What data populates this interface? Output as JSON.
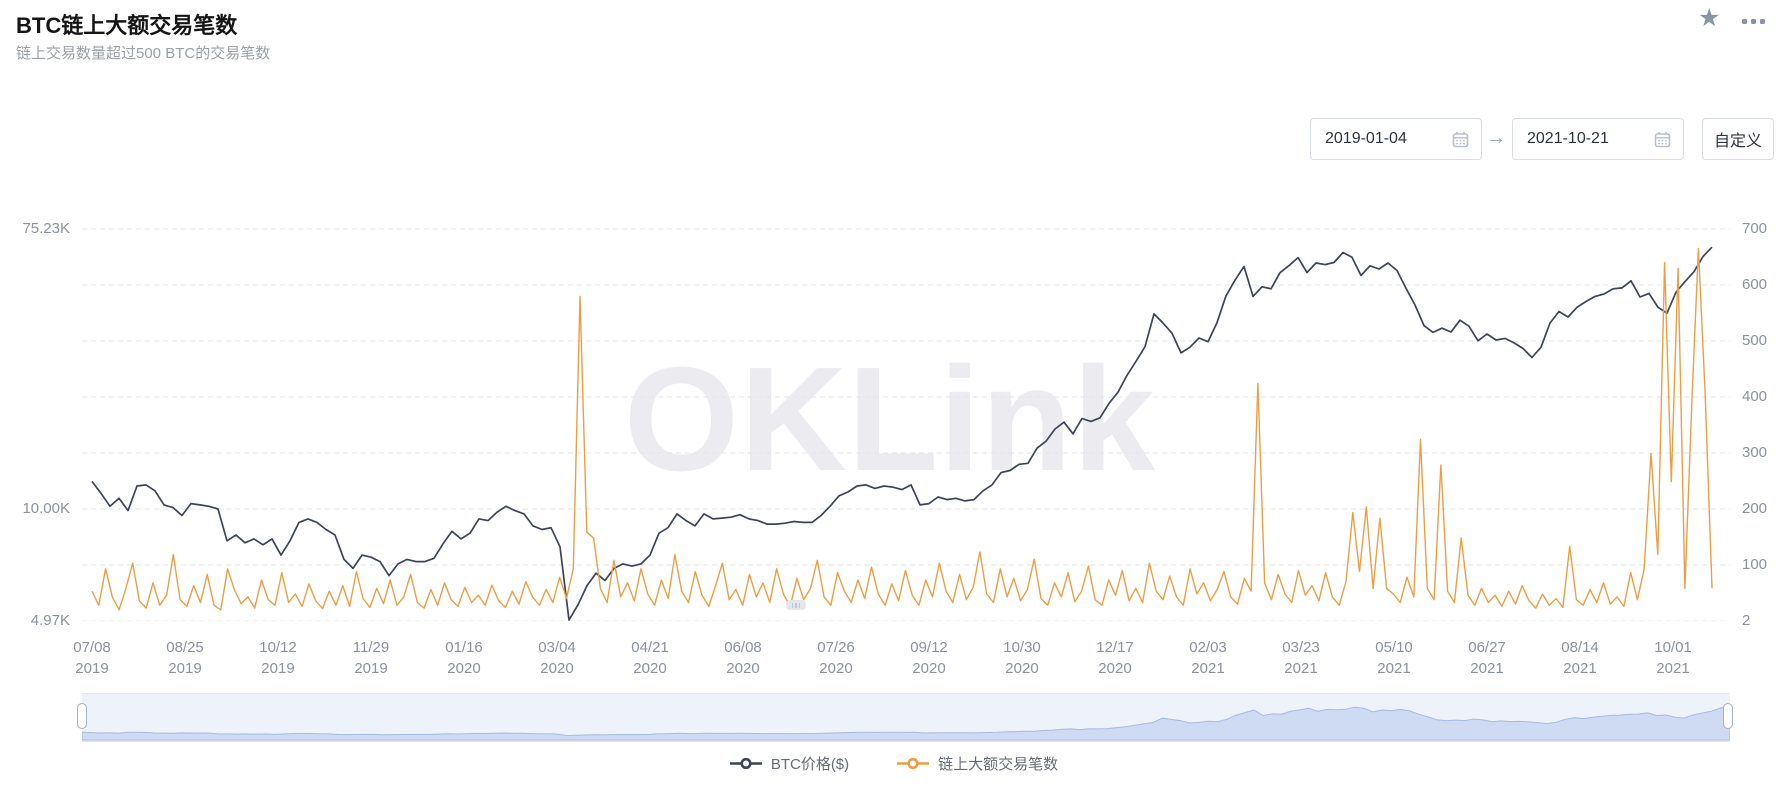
{
  "header": {
    "title": "BTC链上大额交易笔数",
    "subtitle": "链上交易数量超过500 BTC的交易笔数"
  },
  "controls": {
    "start_date": "2019-01-04",
    "end_date": "2021-10-21",
    "arrow": "→",
    "custom_label": "自定义"
  },
  "icons": {
    "star": "★",
    "calendar": "calendar-icon",
    "more": "more-dots-icon"
  },
  "chart_data": {
    "type": "line",
    "title": "BTC链上大额交易笔数",
    "watermark": "OKLink",
    "grid_color": "#e3e5ea",
    "legend_position": "bottom-center",
    "x_axis": {
      "ticks": [
        {
          "date": "07/08",
          "year": "2019"
        },
        {
          "date": "08/25",
          "year": "2019"
        },
        {
          "date": "10/12",
          "year": "2019"
        },
        {
          "date": "11/29",
          "year": "2019"
        },
        {
          "date": "01/16",
          "year": "2020"
        },
        {
          "date": "03/04",
          "year": "2020"
        },
        {
          "date": "04/21",
          "year": "2020"
        },
        {
          "date": "06/08",
          "year": "2020"
        },
        {
          "date": "07/26",
          "year": "2020"
        },
        {
          "date": "09/12",
          "year": "2020"
        },
        {
          "date": "10/30",
          "year": "2020"
        },
        {
          "date": "12/17",
          "year": "2020"
        },
        {
          "date": "02/03",
          "year": "2021"
        },
        {
          "date": "03/23",
          "year": "2021"
        },
        {
          "date": "05/10",
          "year": "2021"
        },
        {
          "date": "06/27",
          "year": "2021"
        },
        {
          "date": "08/14",
          "year": "2021"
        },
        {
          "date": "10/01",
          "year": "2021"
        }
      ]
    },
    "y_axis_left": {
      "scale": "log",
      "unit": "K",
      "labels": [
        {
          "text": "75.23K",
          "line": 0
        },
        {
          "text": "10.00K",
          "line": 5
        },
        {
          "text": "4.97K",
          "line": 7
        }
      ],
      "min": 4970,
      "max": 75230
    },
    "y_axis_right": {
      "scale": "linear",
      "labels": [
        "700",
        "600",
        "500",
        "400",
        "300",
        "200",
        "100",
        "2"
      ],
      "min": 2,
      "max": 700
    },
    "series": [
      {
        "name": "BTC价格($)",
        "color": "#3d4459",
        "axis": "left",
        "unit_scale": 1000,
        "values": [
          12.2,
          11.2,
          10.2,
          10.8,
          9.9,
          11.8,
          11.9,
          11.4,
          10.3,
          10.1,
          9.6,
          10.4,
          10.3,
          10.2,
          10.0,
          8.2,
          8.5,
          8.1,
          8.3,
          8.0,
          8.3,
          7.5,
          8.2,
          9.2,
          9.4,
          9.2,
          8.8,
          8.5,
          7.3,
          6.9,
          7.5,
          7.4,
          7.2,
          6.6,
          7.1,
          7.3,
          7.2,
          7.2,
          7.35,
          8.05,
          8.7,
          8.3,
          8.6,
          9.4,
          9.3,
          9.8,
          10.2,
          9.9,
          9.7,
          9.0,
          8.8,
          8.9,
          7.9,
          5.0,
          5.5,
          6.2,
          6.7,
          6.4,
          6.9,
          7.1,
          7.0,
          7.1,
          7.5,
          8.6,
          8.9,
          9.7,
          9.3,
          9.0,
          9.7,
          9.4,
          9.45,
          9.5,
          9.65,
          9.4,
          9.3,
          9.1,
          9.1,
          9.15,
          9.25,
          9.2,
          9.2,
          9.6,
          10.2,
          11.0,
          11.3,
          11.8,
          11.9,
          11.6,
          11.8,
          11.7,
          11.5,
          11.9,
          10.3,
          10.4,
          10.9,
          10.7,
          10.8,
          10.6,
          10.7,
          11.4,
          11.9,
          13.0,
          13.2,
          13.8,
          13.9,
          15.5,
          16.3,
          17.8,
          18.7,
          17.2,
          19.2,
          18.8,
          19.3,
          21.4,
          23.2,
          26.2,
          29.0,
          32.2,
          40.8,
          38.2,
          35.5,
          30.8,
          32.1,
          34.3,
          33.4,
          38.3,
          46.5,
          52.0,
          57.4,
          46.3,
          49.6,
          48.9,
          54.9,
          57.8,
          61.2,
          55.0,
          58.9,
          58.2,
          59.1,
          63.5,
          61.4,
          53.8,
          57.7,
          56.4,
          58.9,
          55.8,
          49.1,
          43.5,
          37.5,
          35.7,
          36.8,
          35.8,
          39.0,
          37.3,
          33.6,
          35.3,
          33.8,
          34.2,
          33.1,
          31.8,
          29.8,
          32.1,
          38.2,
          41.5,
          39.9,
          42.8,
          44.6,
          46.3,
          47.1,
          48.9,
          49.2,
          51.8,
          46.1,
          47.3,
          42.8,
          41.0,
          47.7,
          51.5,
          55.3,
          61.7,
          66.0
        ]
      },
      {
        "name": "链上大额交易笔数",
        "color": "#ef9d45",
        "axis": "right",
        "values": [
          55,
          30,
          95,
          45,
          22,
          60,
          105,
          38,
          25,
          70,
          30,
          48,
          120,
          40,
          28,
          65,
          35,
          85,
          30,
          22,
          95,
          58,
          33,
          45,
          25,
          75,
          40,
          30,
          88,
          35,
          50,
          28,
          68,
          38,
          24,
          55,
          30,
          65,
          28,
          90,
          42,
          26,
          60,
          33,
          75,
          30,
          45,
          85,
          35,
          25,
          58,
          30,
          70,
          40,
          28,
          62,
          35,
          48,
          30,
          66,
          38,
          26,
          55,
          32,
          72,
          45,
          30,
          58,
          35,
          80,
          42,
          95,
          580,
          160,
          150,
          60,
          35,
          110,
          45,
          70,
          38,
          95,
          50,
          30,
          75,
          42,
          120,
          55,
          35,
          90,
          48,
          28,
          65,
          105,
          40,
          58,
          30,
          85,
          45,
          70,
          35,
          95,
          50,
          28,
          78,
          40,
          60,
          110,
          45,
          30,
          88,
          55,
          35,
          75,
          42,
          98,
          50,
          30,
          68,
          38,
          92,
          48,
          30,
          75,
          45,
          105,
          55,
          35,
          85,
          40,
          62,
          125,
          50,
          35,
          95,
          45,
          78,
          38,
          58,
          112,
          42,
          30,
          70,
          45,
          88,
          36,
          55,
          100,
          40,
          30,
          75,
          48,
          92,
          38,
          60,
          35,
          105,
          55,
          40,
          82,
          45,
          30,
          95,
          50,
          70,
          38,
          58,
          90,
          45,
          32,
          78,
          55,
          425,
          70,
          40,
          85,
          50,
          35,
          92,
          48,
          65,
          38,
          88,
          45,
          30,
          72,
          195,
          90,
          205,
          60,
          185,
          60,
          50,
          35,
          80,
          45,
          325,
          60,
          40,
          280,
          55,
          35,
          150,
          48,
          30,
          60,
          35,
          48,
          28,
          55,
          32,
          65,
          38,
          25,
          50,
          30,
          42,
          26,
          135,
          40,
          30,
          58,
          35,
          70,
          32,
          45,
          28,
          88,
          40,
          95,
          300,
          120,
          640,
          250,
          630,
          60,
          385,
          665,
          405,
          60
        ]
      }
    ],
    "navigator": {
      "band_fill": "#eef2fb",
      "area_fill": "#cfdaf3",
      "area_line": "#a6bbe3",
      "handle_border": "#a9b0bf"
    }
  }
}
